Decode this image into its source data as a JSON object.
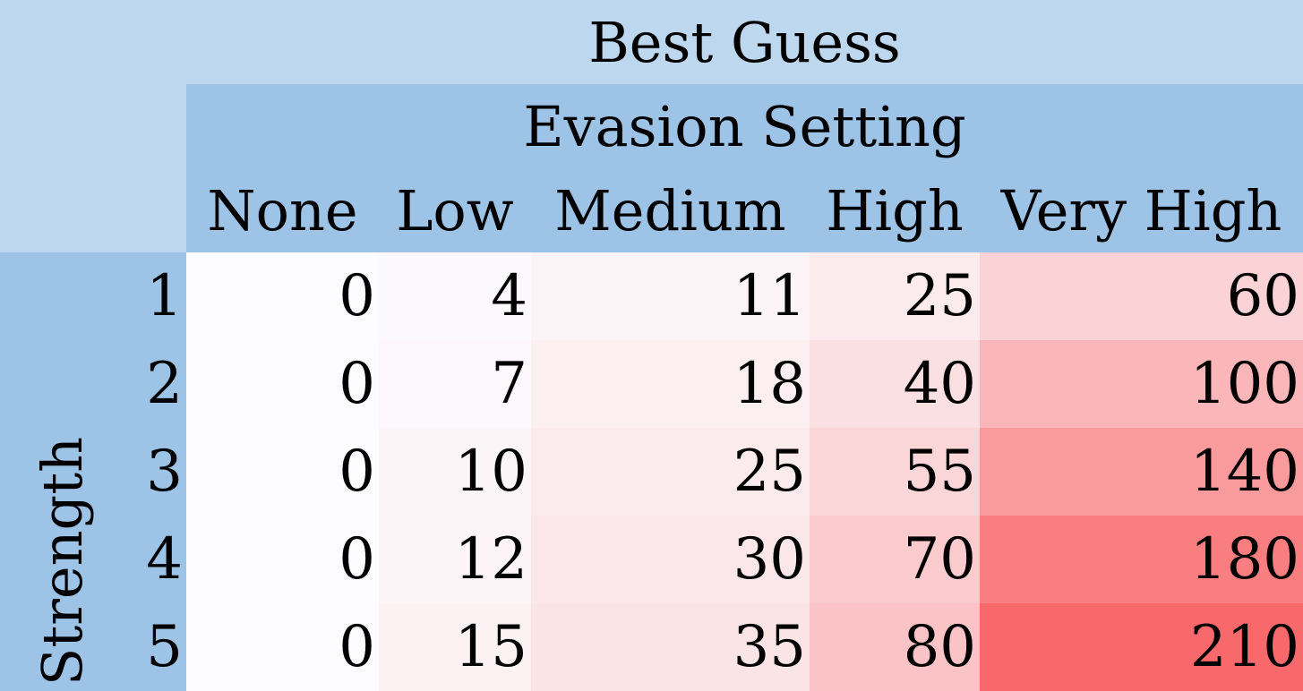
{
  "chart_data": {
    "type": "heatmap",
    "title": "Best Guess",
    "column_group_label": "Evasion Setting",
    "columns": [
      "None",
      "Low",
      "Medium",
      "High",
      "Very High"
    ],
    "row_group_label": "Strength",
    "rows": [
      "1",
      "2",
      "3",
      "4",
      "5"
    ],
    "values": [
      [
        0,
        4,
        11,
        25,
        60
      ],
      [
        0,
        7,
        18,
        40,
        100
      ],
      [
        0,
        10,
        25,
        55,
        140
      ],
      [
        0,
        12,
        30,
        70,
        180
      ],
      [
        0,
        15,
        35,
        80,
        210
      ]
    ],
    "colors": {
      "header_light": "#bdd7ee",
      "header_dark": "#9dc3e6",
      "scale_low": "#fcfcff",
      "scale_high": "#f8696b"
    }
  }
}
